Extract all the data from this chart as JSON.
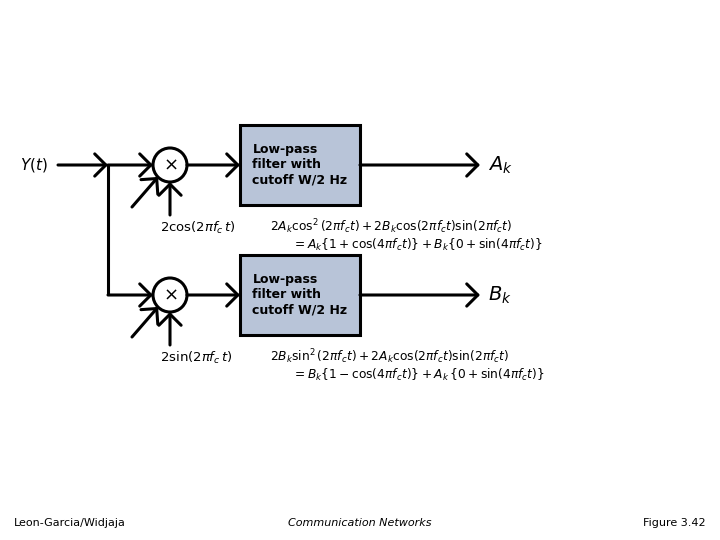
{
  "bg_color": "#ffffff",
  "box_color": "#b8c4d8",
  "box_edge_color": "#000000",
  "line_color": "#000000",
  "text_color": "#000000",
  "footer_left": "Leon-Garcia/Widjaja",
  "footer_center": "Communication Networks",
  "footer_right": "Figure 3.42",
  "lpf_label": "Low-pass\nfilter with\ncutoff W/2 Hz"
}
